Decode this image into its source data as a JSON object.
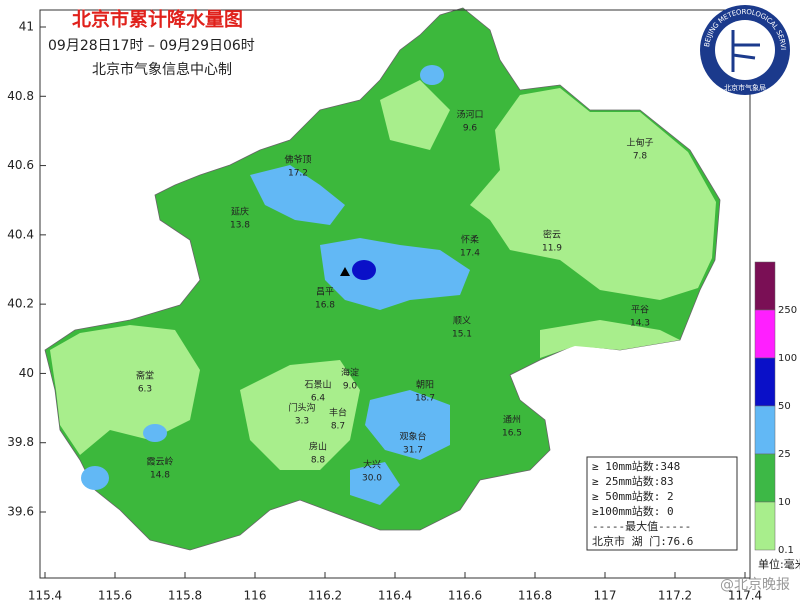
{
  "header": {
    "title": "北京市累计降水量图",
    "period": "09月28日17时 – 09月29日06时",
    "issuer": "北京市气象信息中心制"
  },
  "logo": {
    "ring_text": "BEIJING METEOROLOGICAL SERVICE",
    "bottom_text": "北京市气象局"
  },
  "axes": {
    "xticks": [
      115.4,
      115.6,
      115.8,
      116,
      116.2,
      116.4,
      116.6,
      116.8,
      117,
      117.2,
      117.4
    ],
    "yticks": [
      39.6,
      39.8,
      40,
      40.2,
      40.4,
      40.6,
      40.8,
      41
    ]
  },
  "stations": [
    {
      "name": "汤河口",
      "value": 9.6
    },
    {
      "name": "上甸子",
      "value": 7.8
    },
    {
      "name": "佛爷顶",
      "value": 17.2
    },
    {
      "name": "延庆",
      "value": 13.8
    },
    {
      "name": "怀柔",
      "value": 17.4
    },
    {
      "name": "密云",
      "value": 11.9
    },
    {
      "name": "昌平",
      "value": 16.8
    },
    {
      "name": "平谷",
      "value": 14.3
    },
    {
      "name": "顺义",
      "value": 15.1
    },
    {
      "name": "斋堂",
      "value": 6.3
    },
    {
      "name": "海淀",
      "value": 9.0,
      "value_label": "9.0"
    },
    {
      "name": "石景山",
      "value": 6.4
    },
    {
      "name": "朝阳",
      "value": 18.7
    },
    {
      "name": "门头沟",
      "value": 3.3
    },
    {
      "name": "丰台",
      "value": 8.7
    },
    {
      "name": "通州",
      "value": 16.5
    },
    {
      "name": "观象台",
      "value": 31.7
    },
    {
      "name": "房山",
      "value": 8.8
    },
    {
      "name": "霞云岭",
      "value": 14.8
    },
    {
      "name": "大兴",
      "value": 30.0,
      "value_label": "30.0"
    }
  ],
  "stats": [
    "≥ 10mm站数:348",
    "≥ 25mm站数:83",
    "≥ 50mm站数: 2",
    "≥100mm站数: 0",
    "-----最大值-----",
    "北京市 湖  门:76.6"
  ],
  "legend": {
    "bands": [
      {
        "label": "250",
        "color": "#7a0f55"
      },
      {
        "label": "100",
        "color": "#ff1fff"
      },
      {
        "label": "50",
        "color": "#0a10c8"
      },
      {
        "label": "25",
        "color": "#62b8f5"
      },
      {
        "label": "10",
        "color": "#3db846"
      },
      {
        "label": "0.1",
        "color": "#a8ee8c"
      }
    ],
    "unit": "单位:毫米"
  },
  "watermark": "@北京晚报"
}
